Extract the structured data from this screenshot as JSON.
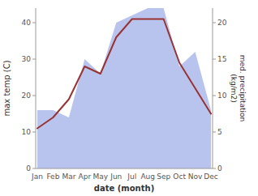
{
  "chart_data": {
    "type": "line",
    "x_label": "date (month)",
    "y_label": "max temp (C)",
    "y2_label": "med. precipitation\n(kg/m2)",
    "categories": [
      "Jan",
      "Feb",
      "Mar",
      "Apr",
      "May",
      "Jun",
      "Jul",
      "Aug",
      "Sep",
      "Oct",
      "Nov",
      "Dec"
    ],
    "series": [
      {
        "type": "area",
        "color": "#b8c4ee",
        "axis": "y2",
        "values": [
          8,
          8,
          7,
          15,
          13,
          20,
          21,
          22,
          22,
          14,
          16,
          8
        ]
      },
      {
        "type": "line",
        "color": "#993333",
        "values": [
          11,
          14,
          19,
          28,
          26,
          36,
          41,
          41,
          41,
          29,
          22,
          15
        ]
      }
    ],
    "ylim": [
      0,
      44
    ],
    "yticks": [
      0,
      10,
      20,
      30,
      40
    ],
    "y2lim": [
      0,
      22
    ],
    "y2ticks": [
      0,
      5,
      10,
      15,
      20
    ],
    "grid": false
  }
}
